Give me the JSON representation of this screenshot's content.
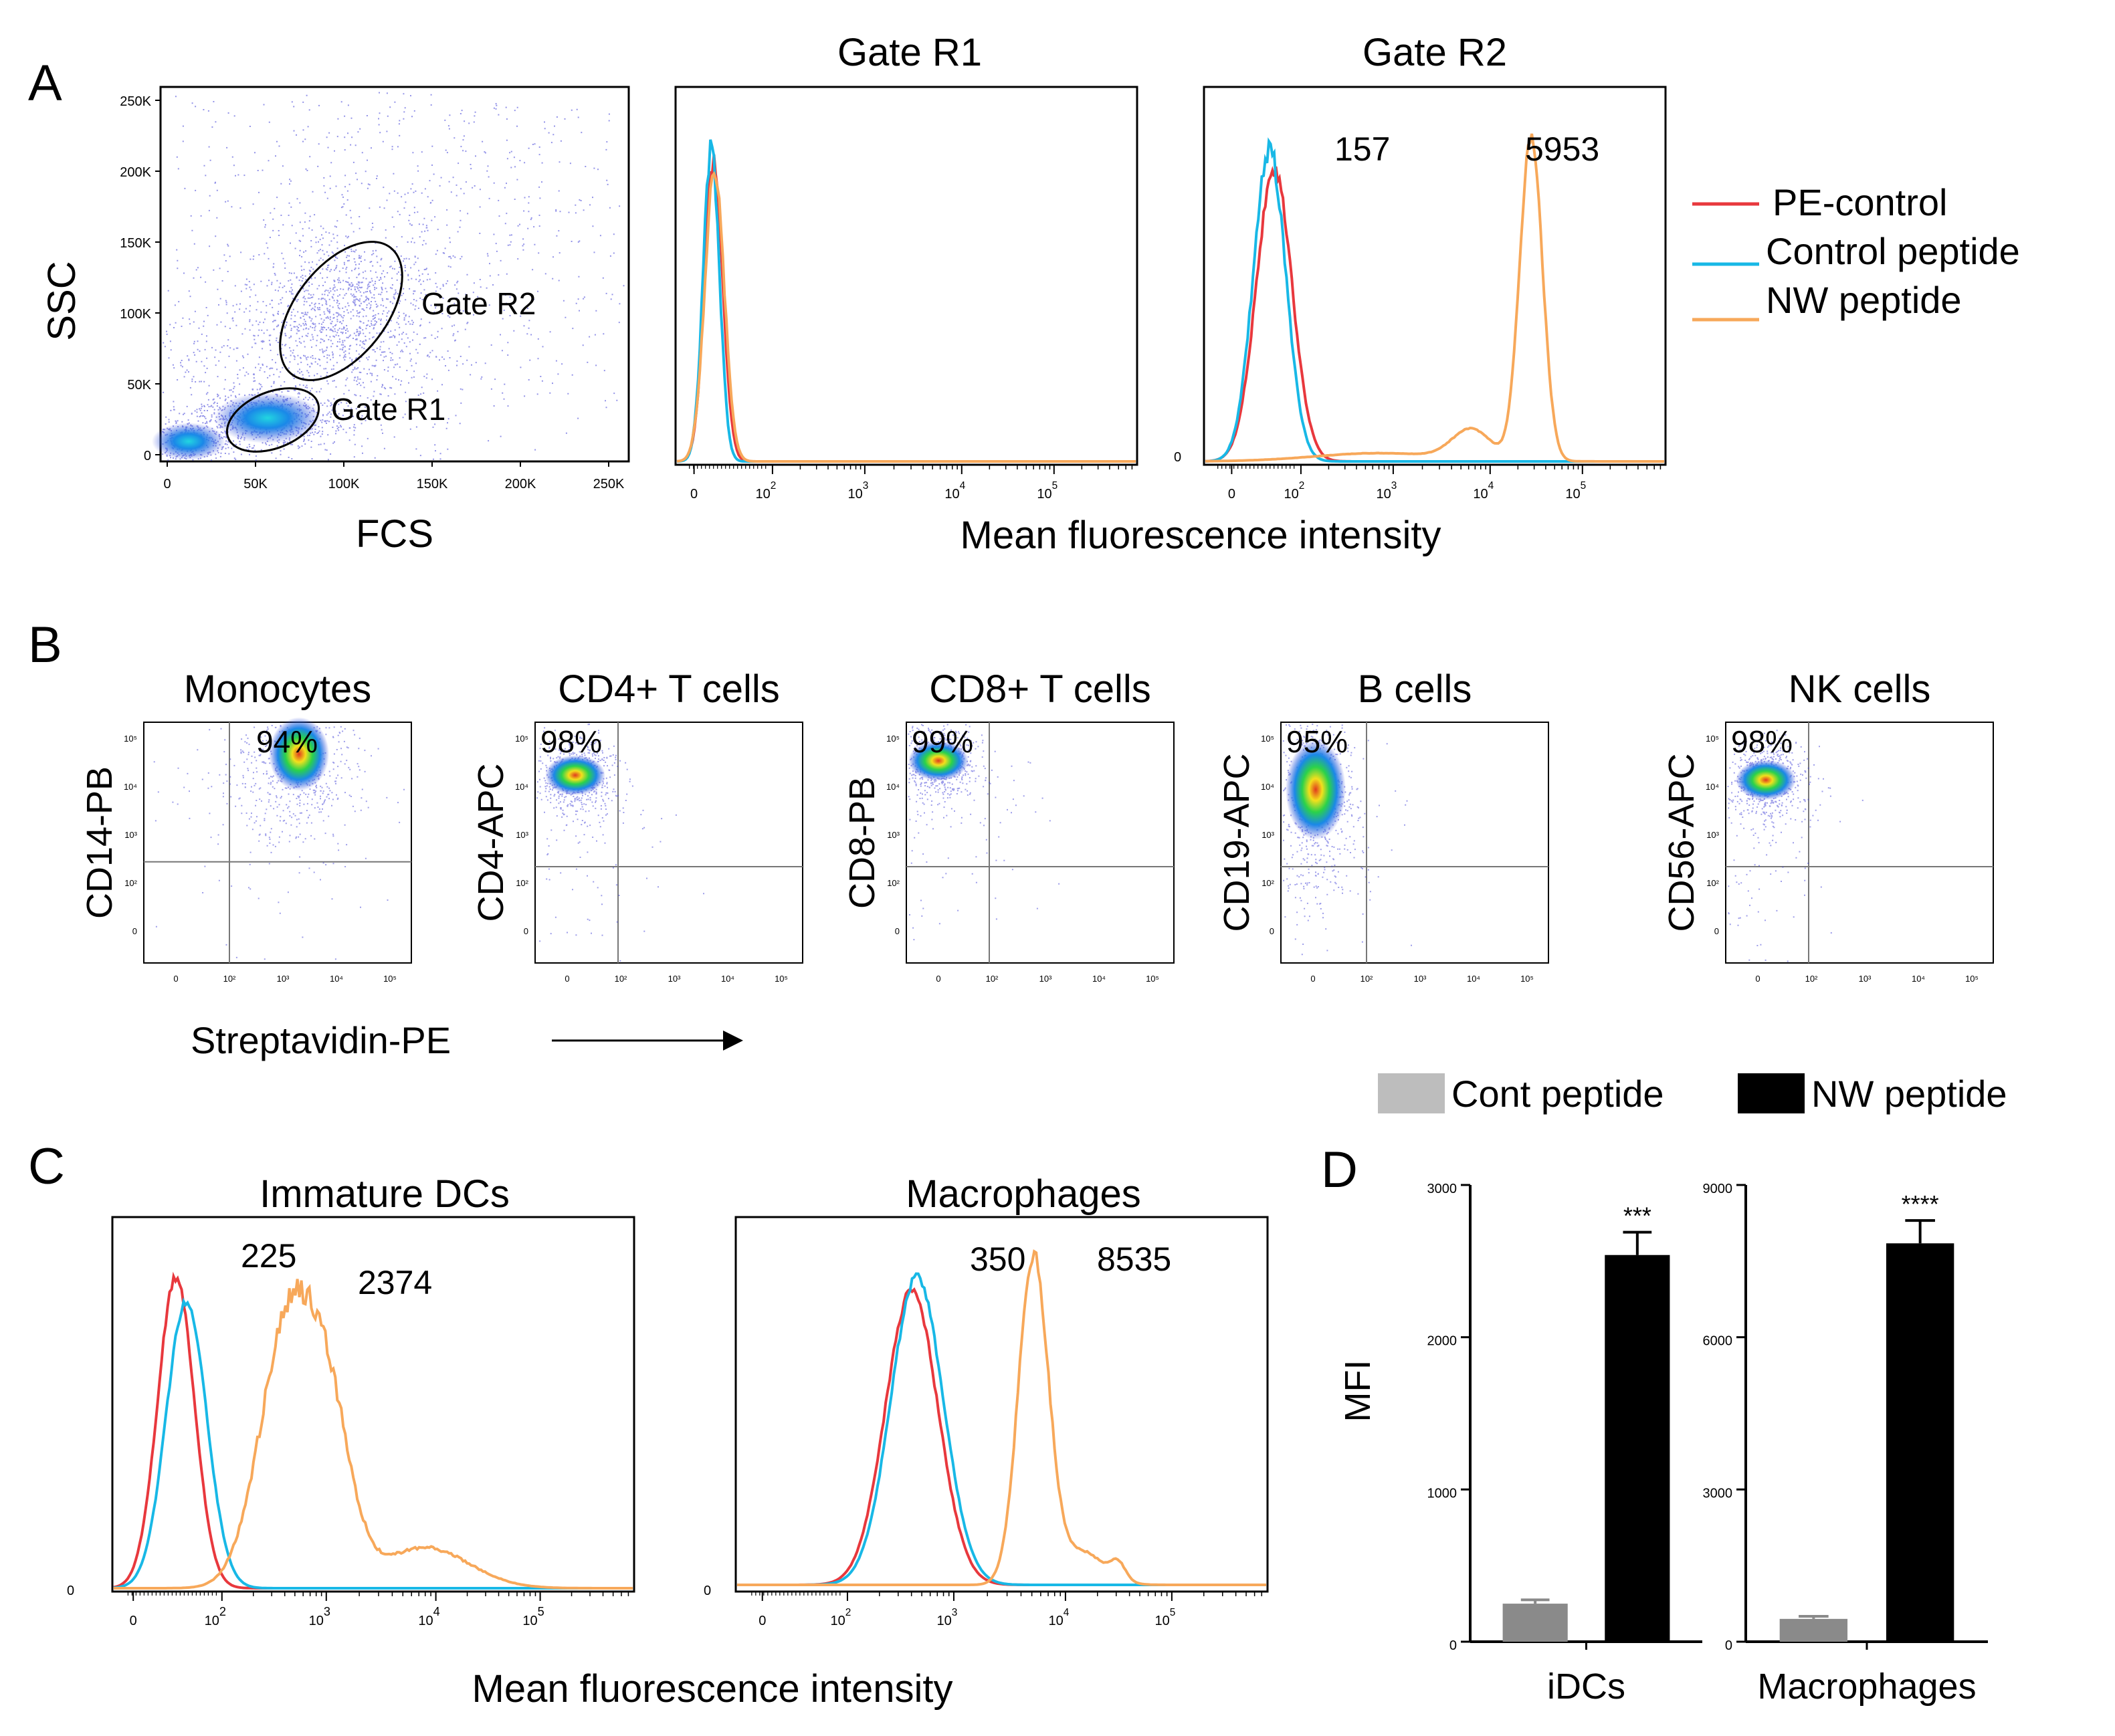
{
  "panel_letters": {
    "a": "A",
    "b": "B",
    "c": "C",
    "d": "D"
  },
  "colors": {
    "pe_control": "#e8383d",
    "control_peptide": "#18b8e6",
    "nw_peptide": "#f7a85a",
    "dot": "#3b3bd6",
    "bar_cont": "#8a8a8a",
    "bar_nw": "#000000"
  },
  "panel_a": {
    "scatter": {
      "xlabel": "FCS",
      "ylabel": "SSC",
      "xticks": [
        "0",
        "50K",
        "100K",
        "150K",
        "200K",
        "250K"
      ],
      "yticks": [
        "0",
        "50K",
        "100K",
        "150K",
        "200K",
        "250K"
      ],
      "gate_r1_label": "Gate R1",
      "gate_r2_label": "Gate R2"
    },
    "hist_r1": {
      "title": "Gate R1"
    },
    "hist_r2": {
      "title": "Gate R2",
      "value_control": "157",
      "value_nw": "5953",
      "zero": "0"
    },
    "shared_xlabel": "Mean fluorescence intensity",
    "legend": [
      "PE-control",
      "Control peptide",
      "NW peptide"
    ]
  },
  "panel_b": {
    "plots": [
      {
        "title": "Monocytes",
        "ylabel": "CD14-PB",
        "percent": "94%"
      },
      {
        "title": "CD4+ T cells",
        "ylabel": "CD4-APC",
        "percent": "98%"
      },
      {
        "title": "CD8+ T cells",
        "ylabel": "CD8-PB",
        "percent": "99%"
      },
      {
        "title": "B cells",
        "ylabel": "CD19-APC",
        "percent": "95%"
      },
      {
        "title": "NK cells",
        "ylabel": "CD56-APC",
        "percent": "98%"
      }
    ],
    "xlabel": "Streptavidin-PE"
  },
  "panel_c": {
    "idc": {
      "title": "Immature DCs",
      "value_control": "225",
      "value_nw": "2374"
    },
    "mac": {
      "title": "Macrophages",
      "value_control": "350",
      "value_nw": "8535"
    },
    "zero": "0",
    "xlabel": "Mean fluorescence intensity"
  },
  "panel_d": {
    "legend": [
      "Cont peptide",
      "NW peptide"
    ],
    "ylabel": "MFI"
  },
  "chart_data": [
    {
      "type": "bar",
      "title": "iDCs",
      "categories": [
        "iDCs"
      ],
      "series": [
        {
          "name": "Cont peptide",
          "values": [
            250
          ],
          "error": [
            25
          ]
        },
        {
          "name": "NW peptide",
          "values": [
            2540
          ],
          "error": [
            150
          ]
        }
      ],
      "ylabel": "MFI",
      "ylim": [
        0,
        3000
      ],
      "yticks": [
        "0",
        "1000",
        "2000",
        "3000"
      ],
      "significance": "***"
    },
    {
      "type": "bar",
      "title": "Macrophages",
      "categories": [
        "Macrophages"
      ],
      "series": [
        {
          "name": "Cont peptide",
          "values": [
            450
          ],
          "error": [
            50
          ]
        },
        {
          "name": "NW peptide",
          "values": [
            7850
          ],
          "error": [
            450
          ]
        }
      ],
      "ylabel": "MFI",
      "ylim": [
        0,
        9000
      ],
      "yticks": [
        "0",
        "3000",
        "6000",
        "9000"
      ],
      "significance": "****"
    }
  ]
}
